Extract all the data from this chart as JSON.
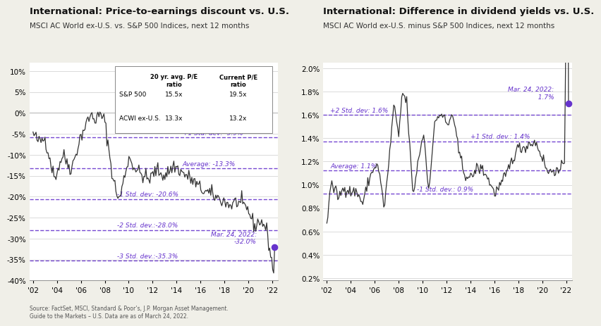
{
  "left": {
    "title": "International: Price-to-earnings discount vs. U.S.",
    "subtitle": "MSCI AC World ex-U.S. vs. S&P 500 Indices, next 12 months",
    "ylim": [
      -40,
      12
    ],
    "yticks": [
      10,
      5,
      0,
      -5,
      -10,
      -15,
      -20,
      -25,
      -30,
      -35,
      -40
    ],
    "hlines": [
      -5.9,
      -13.3,
      -20.6,
      -28.0,
      -35.3
    ],
    "hline_labels": [
      [
        "+1 Std. dev: -5.9%",
        2014.5,
        -5.9,
        "left"
      ],
      [
        "Average: -13.3%",
        2014.5,
        -13.3,
        "left"
      ],
      [
        "-1 Std. dev: -20.6%",
        2009.0,
        -20.6,
        "left"
      ],
      [
        "-2 Std. dev.:-28.0%",
        2009.0,
        -28.0,
        "left"
      ],
      [
        "-3 Std. dev.:-35.3%",
        2009.0,
        -35.3,
        "left"
      ]
    ],
    "endpoint_value": -32.0,
    "endpoint_label": "Mar. 24, 2022:\n-32.0%",
    "source": "Source: FactSet, MSCI, Standard & Poor’s, J.P. Morgan Asset Management.\nGuide to the Markets – U.S. Data are as of March 24, 2022.",
    "table_rows": [
      [
        "S&P 500",
        "15.5x",
        "19.5x"
      ],
      [
        "ACWI ex-U.S.",
        "13.3x",
        "13.2x"
      ]
    ]
  },
  "right": {
    "title": "International: Difference in dividend yields vs. U.S.",
    "subtitle": "MSCI AC World ex-U.S. minus S&P 500 Indices, next 12 months",
    "ylim": [
      0.18,
      2.05
    ],
    "yticks": [
      0.2,
      0.4,
      0.6,
      0.8,
      1.0,
      1.2,
      1.4,
      1.6,
      1.8,
      2.0
    ],
    "hlines": [
      1.6,
      1.375,
      1.125,
      0.925
    ],
    "hline_labels": [
      [
        "+2 Std. dev: 1.6%",
        2002.3,
        1.6,
        "left"
      ],
      [
        "+1 Std. dev.: 1.4%",
        2014.0,
        1.375,
        "left"
      ],
      [
        "Average: 1.1%",
        2002.3,
        1.125,
        "left"
      ],
      [
        "-1 Std. dev.: 0.9%",
        2009.5,
        0.925,
        "left"
      ]
    ],
    "endpoint_value": 1.7,
    "endpoint_label": "Mar. 24, 2022:\n  1.7%"
  },
  "line_color": "#333333",
  "hline_color": "#6633cc",
  "hline_label_color": "#6633cc",
  "endpoint_dot_color": "#6633cc",
  "xtick_years": [
    "'02",
    "'04",
    "'06",
    "'08",
    "'10",
    "'12",
    "'14",
    "'16",
    "'18",
    "'20",
    "'22"
  ],
  "xtick_positions": [
    2002,
    2004,
    2006,
    2008,
    2010,
    2012,
    2014,
    2016,
    2018,
    2020,
    2022
  ],
  "background_color": "#f0efe8",
  "plot_bg_color": "#ffffff"
}
